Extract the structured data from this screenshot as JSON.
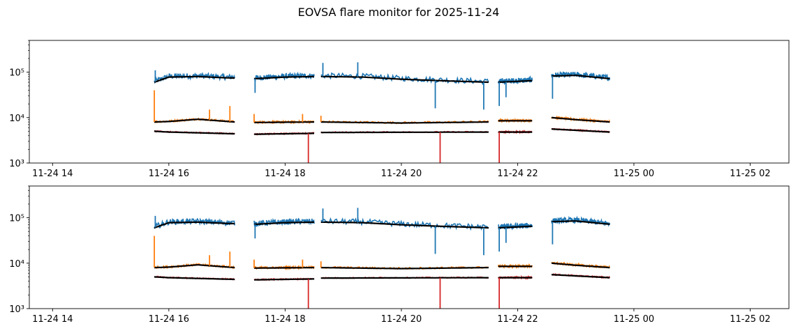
{
  "figure": {
    "title": "EOVSA flare monitor for 2025-11-24"
  },
  "colors": {
    "blue": "#1f77b4",
    "orange": "#ff7f0e",
    "red": "#d62728",
    "smooth": "#000000"
  },
  "chart_data": [
    {
      "type": "line",
      "title": "",
      "xlabel": "",
      "ylabel": "",
      "yscale": "log",
      "xlim": [
        "2025-11-24 13:36",
        "2025-11-25 02:40"
      ],
      "ylim": [
        1000,
        500000
      ],
      "grid": false,
      "legend": "none",
      "xticks": [
        {
          "value": "2025-11-24 14:00",
          "label": "11-24 14"
        },
        {
          "value": "2025-11-24 16:00",
          "label": "11-24 16"
        },
        {
          "value": "2025-11-24 18:00",
          "label": "11-24 18"
        },
        {
          "value": "2025-11-24 20:00",
          "label": "11-24 20"
        },
        {
          "value": "2025-11-24 22:00",
          "label": "11-24 22"
        },
        {
          "value": "2025-11-25 00:00",
          "label": "11-25 00"
        },
        {
          "value": "2025-11-25 02:00",
          "label": "11-25 02"
        }
      ],
      "yticks": [
        {
          "value": 1000,
          "label": "10³"
        },
        {
          "value": 10000,
          "label": "10⁴"
        },
        {
          "value": 100000,
          "label": "10⁵"
        }
      ],
      "segments": [
        {
          "start": "2025-11-24 15:45",
          "end": "2025-11-24 17:08"
        },
        {
          "start": "2025-11-24 17:28",
          "end": "2025-11-24 18:30"
        },
        {
          "start": "2025-11-24 18:37",
          "end": "2025-11-24 21:30"
        },
        {
          "start": "2025-11-24 21:40",
          "end": "2025-11-24 22:15"
        },
        {
          "start": "2025-11-24 22:35",
          "end": "2025-11-24 23:35"
        }
      ],
      "series": [
        {
          "color_key": "blue",
          "x": [
            "2025-11-24 15:45",
            "2025-11-24 16:00",
            "2025-11-24 16:30",
            "2025-11-24 17:00",
            "2025-11-24 17:30",
            "2025-11-24 18:00",
            "2025-11-24 18:30",
            "2025-11-24 18:40",
            "2025-11-24 19:20",
            "2025-11-24 20:00",
            "2025-11-24 20:40",
            "2025-11-24 21:30",
            "2025-11-24 21:40",
            "2025-11-24 22:15",
            "2025-11-24 22:35",
            "2025-11-24 23:00",
            "2025-11-24 23:35"
          ],
          "values": [
            60000,
            78000,
            80000,
            75000,
            72000,
            78000,
            80000,
            80000,
            78000,
            70000,
            65000,
            60000,
            60000,
            65000,
            82000,
            85000,
            72000
          ],
          "spikes": [
            {
              "x": "2025-11-24 15:46",
              "y": 110000
            },
            {
              "x": "2025-11-24 17:29",
              "y": 35000
            },
            {
              "x": "2025-11-24 18:39",
              "y": 160000
            },
            {
              "x": "2025-11-24 19:15",
              "y": 165000
            },
            {
              "x": "2025-11-24 20:35",
              "y": 16000
            },
            {
              "x": "2025-11-24 21:25",
              "y": 15000
            },
            {
              "x": "2025-11-24 21:41",
              "y": 18000
            },
            {
              "x": "2025-11-24 21:48",
              "y": 28000
            },
            {
              "x": "2025-11-24 22:36",
              "y": 26000
            }
          ]
        },
        {
          "color_key": "orange",
          "x": [
            "2025-11-24 15:45",
            "2025-11-24 16:00",
            "2025-11-24 16:30",
            "2025-11-24 17:08",
            "2025-11-24 17:28",
            "2025-11-24 18:30",
            "2025-11-24 18:37",
            "2025-11-24 20:00",
            "2025-11-24 21:30",
            "2025-11-24 21:40",
            "2025-11-24 22:15",
            "2025-11-24 22:35",
            "2025-11-24 23:00",
            "2025-11-24 23:35"
          ],
          "values": [
            8000,
            8200,
            9200,
            8000,
            7800,
            8000,
            8000,
            7600,
            8000,
            8500,
            8500,
            10000,
            9000,
            8000
          ],
          "spikes": [
            {
              "x": "2025-11-24 15:45",
              "y": 40000
            },
            {
              "x": "2025-11-24 16:42",
              "y": 15000
            },
            {
              "x": "2025-11-24 17:03",
              "y": 18000
            },
            {
              "x": "2025-11-24 17:28",
              "y": 12000
            },
            {
              "x": "2025-11-24 18:18",
              "y": 12000
            },
            {
              "x": "2025-11-24 18:37",
              "y": 11000
            }
          ]
        },
        {
          "color_key": "red",
          "x": [
            "2025-11-24 15:45",
            "2025-11-24 16:00",
            "2025-11-24 17:08",
            "2025-11-24 17:28",
            "2025-11-24 18:30",
            "2025-11-24 18:37",
            "2025-11-24 21:30",
            "2025-11-24 21:40",
            "2025-11-24 22:15",
            "2025-11-24 22:35",
            "2025-11-24 23:35"
          ],
          "values": [
            5000,
            4800,
            4400,
            4300,
            4500,
            4700,
            4800,
            4800,
            4800,
            5600,
            4800
          ],
          "spikes": [
            {
              "x": "2025-11-24 18:24",
              "y": 1000
            },
            {
              "x": "2025-11-24 20:40",
              "y": 1000
            },
            {
              "x": "2025-11-24 21:41",
              "y": 1000
            }
          ]
        }
      ]
    },
    {
      "type": "line",
      "title": "",
      "xlabel": "",
      "ylabel": "",
      "yscale": "log",
      "xlim": [
        "2025-11-24 13:36",
        "2025-11-25 02:40"
      ],
      "ylim": [
        1000,
        500000
      ],
      "grid": false,
      "legend": "none",
      "xticks": [
        {
          "value": "2025-11-24 14:00",
          "label": "11-24 14"
        },
        {
          "value": "2025-11-24 16:00",
          "label": "11-24 16"
        },
        {
          "value": "2025-11-24 18:00",
          "label": "11-24 18"
        },
        {
          "value": "2025-11-24 20:00",
          "label": "11-24 20"
        },
        {
          "value": "2025-11-24 22:00",
          "label": "11-24 22"
        },
        {
          "value": "2025-11-25 00:00",
          "label": "11-25 00"
        },
        {
          "value": "2025-11-25 02:00",
          "label": "11-25 02"
        }
      ],
      "yticks": [
        {
          "value": 1000,
          "label": "10³"
        },
        {
          "value": 10000,
          "label": "10⁴"
        },
        {
          "value": 100000,
          "label": "10⁵"
        }
      ],
      "segments": [
        {
          "start": "2025-11-24 15:45",
          "end": "2025-11-24 17:08"
        },
        {
          "start": "2025-11-24 17:28",
          "end": "2025-11-24 18:30"
        },
        {
          "start": "2025-11-24 18:37",
          "end": "2025-11-24 21:30"
        },
        {
          "start": "2025-11-24 21:40",
          "end": "2025-11-24 22:15"
        },
        {
          "start": "2025-11-24 22:35",
          "end": "2025-11-24 23:35"
        }
      ],
      "series": [
        {
          "color_key": "blue",
          "x": [
            "2025-11-24 15:45",
            "2025-11-24 16:00",
            "2025-11-24 16:30",
            "2025-11-24 17:00",
            "2025-11-24 17:30",
            "2025-11-24 18:00",
            "2025-11-24 18:30",
            "2025-11-24 18:40",
            "2025-11-24 19:20",
            "2025-11-24 20:00",
            "2025-11-24 20:40",
            "2025-11-24 21:30",
            "2025-11-24 21:40",
            "2025-11-24 22:15",
            "2025-11-24 22:35",
            "2025-11-24 23:00",
            "2025-11-24 23:35"
          ],
          "values": [
            60000,
            78000,
            80000,
            75000,
            72000,
            78000,
            80000,
            80000,
            78000,
            70000,
            65000,
            60000,
            60000,
            65000,
            82000,
            85000,
            72000
          ],
          "spikes": [
            {
              "x": "2025-11-24 15:46",
              "y": 110000
            },
            {
              "x": "2025-11-24 17:29",
              "y": 35000
            },
            {
              "x": "2025-11-24 18:39",
              "y": 160000
            },
            {
              "x": "2025-11-24 19:15",
              "y": 165000
            },
            {
              "x": "2025-11-24 20:35",
              "y": 16000
            },
            {
              "x": "2025-11-24 21:25",
              "y": 15000
            },
            {
              "x": "2025-11-24 21:41",
              "y": 18000
            },
            {
              "x": "2025-11-24 21:48",
              "y": 28000
            },
            {
              "x": "2025-11-24 22:36",
              "y": 26000
            }
          ]
        },
        {
          "color_key": "orange",
          "x": [
            "2025-11-24 15:45",
            "2025-11-24 16:00",
            "2025-11-24 16:30",
            "2025-11-24 17:08",
            "2025-11-24 17:28",
            "2025-11-24 18:30",
            "2025-11-24 18:37",
            "2025-11-24 20:00",
            "2025-11-24 21:30",
            "2025-11-24 21:40",
            "2025-11-24 22:15",
            "2025-11-24 22:35",
            "2025-11-24 23:00",
            "2025-11-24 23:35"
          ],
          "values": [
            8000,
            8200,
            9200,
            8000,
            7800,
            8000,
            8000,
            7600,
            8000,
            8500,
            8500,
            10000,
            9000,
            8000
          ],
          "spikes": [
            {
              "x": "2025-11-24 15:45",
              "y": 40000
            },
            {
              "x": "2025-11-24 16:42",
              "y": 15000
            },
            {
              "x": "2025-11-24 17:03",
              "y": 18000
            },
            {
              "x": "2025-11-24 17:28",
              "y": 12000
            },
            {
              "x": "2025-11-24 18:18",
              "y": 12000
            },
            {
              "x": "2025-11-24 18:37",
              "y": 11000
            }
          ]
        },
        {
          "color_key": "red",
          "x": [
            "2025-11-24 15:45",
            "2025-11-24 16:00",
            "2025-11-24 17:08",
            "2025-11-24 17:28",
            "2025-11-24 18:30",
            "2025-11-24 18:37",
            "2025-11-24 21:30",
            "2025-11-24 21:40",
            "2025-11-24 22:15",
            "2025-11-24 22:35",
            "2025-11-24 23:35"
          ],
          "values": [
            5000,
            4800,
            4400,
            4300,
            4500,
            4700,
            4800,
            4800,
            4800,
            5600,
            4800
          ],
          "spikes": [
            {
              "x": "2025-11-24 18:24",
              "y": 1000
            },
            {
              "x": "2025-11-24 20:40",
              "y": 1000
            },
            {
              "x": "2025-11-24 21:41",
              "y": 1000
            }
          ]
        }
      ]
    }
  ]
}
